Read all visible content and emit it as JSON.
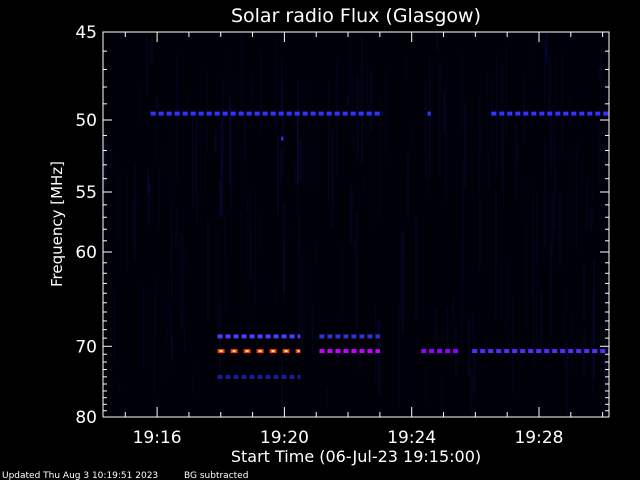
{
  "chart_data": {
    "type": "heatmap",
    "title": "Solar radio Flux (Glasgow)",
    "ylabel": "Frequency [MHz]",
    "xlabel": "Start Time (06-Jul-23 19:15:00)",
    "x_start": "19:15:00",
    "xlim_minutes_after_19_00": [
      14.3,
      30.2
    ],
    "x_ticks": [
      {
        "label": "19:16",
        "minute": 16
      },
      {
        "label": "19:20",
        "minute": 20
      },
      {
        "label": "19:24",
        "minute": 24
      },
      {
        "label": "19:28",
        "minute": 28
      }
    ],
    "y_scale": "reciprocal",
    "ylim": [
      45,
      80
    ],
    "y_ticks": [
      45,
      50,
      55,
      60,
      70,
      80
    ],
    "background_color": "#000000",
    "colormap": [
      "#000000",
      "#0000cc",
      "#7a00ff",
      "#ff2000",
      "#ffd000"
    ],
    "features": [
      {
        "freq_mhz": 49.6,
        "start_min": 15.8,
        "end_min": 23.1,
        "intensity": "low",
        "color": "#3333ff"
      },
      {
        "freq_mhz": 49.6,
        "start_min": 24.5,
        "end_min": 24.6,
        "intensity": "low",
        "color": "#3333ff"
      },
      {
        "freq_mhz": 49.6,
        "start_min": 26.5,
        "end_min": 30.2,
        "intensity": "low",
        "color": "#3333ff"
      },
      {
        "freq_mhz": 51.2,
        "start_min": 19.9,
        "end_min": 19.95,
        "intensity": "low",
        "color": "#3333ff"
      },
      {
        "freq_mhz": 68.8,
        "start_min": 17.9,
        "end_min": 20.5,
        "intensity": "medium",
        "color": "#4a3bff"
      },
      {
        "freq_mhz": 68.8,
        "start_min": 21.1,
        "end_min": 23.0,
        "intensity": "low",
        "color": "#3333cc"
      },
      {
        "freq_mhz": 70.6,
        "start_min": 17.9,
        "end_min": 20.5,
        "intensity": "high",
        "color": "#ff3a00"
      },
      {
        "freq_mhz": 70.6,
        "start_min": 21.1,
        "end_min": 23.0,
        "intensity": "medium",
        "color": "#cc00ff"
      },
      {
        "freq_mhz": 70.6,
        "start_min": 24.3,
        "end_min": 25.5,
        "intensity": "medium",
        "color": "#9900ff"
      },
      {
        "freq_mhz": 70.6,
        "start_min": 25.9,
        "end_min": 30.2,
        "intensity": "low",
        "color": "#5a2bff"
      },
      {
        "freq_mhz": 74.0,
        "start_min": 17.9,
        "end_min": 20.5,
        "intensity": "low",
        "color": "#1c1c99"
      }
    ]
  },
  "footer": {
    "updated": "Updated Thu Aug  3 10:19:51 2023",
    "note": "BG subtracted"
  }
}
